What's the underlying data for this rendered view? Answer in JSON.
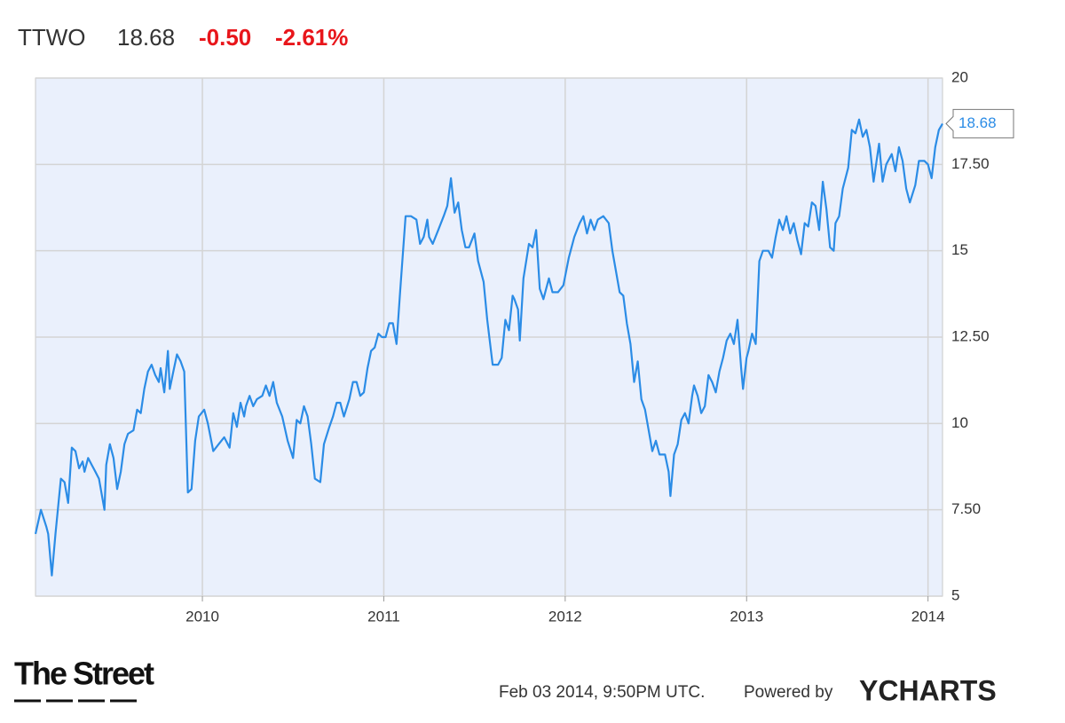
{
  "chart_data": {
    "type": "line",
    "title": "TTWO",
    "price": 18.68,
    "change": "-0.50",
    "change_percent": "-2.61%",
    "timestamp": "Feb 03 2014, 9:50PM UTC.",
    "powered_by": "Powered by",
    "brand": "YCHARTS",
    "source_logo": "The Street",
    "x": [
      2009.08,
      2009.11,
      2009.14,
      2009.15,
      2009.17,
      2009.19,
      2009.22,
      2009.24,
      2009.26,
      2009.28,
      2009.3,
      2009.32,
      2009.34,
      2009.35,
      2009.37,
      2009.39,
      2009.41,
      2009.43,
      2009.46,
      2009.47,
      2009.49,
      2009.51,
      2009.53,
      2009.55,
      2009.57,
      2009.59,
      2009.62,
      2009.64,
      2009.66,
      2009.68,
      2009.7,
      2009.72,
      2009.74,
      2009.76,
      2009.77,
      2009.79,
      2009.81,
      2009.82,
      2009.84,
      2009.86,
      2009.88,
      2009.9,
      2009.92,
      2009.94,
      2009.96,
      2009.98,
      2010.01,
      2010.03,
      2010.06,
      2010.09,
      2010.12,
      2010.15,
      2010.17,
      2010.19,
      2010.21,
      2010.23,
      2010.24,
      2010.26,
      2010.28,
      2010.3,
      2010.33,
      2010.35,
      2010.37,
      2010.39,
      2010.41,
      2010.44,
      2010.47,
      2010.5,
      2010.52,
      2010.54,
      2010.56,
      2010.58,
      2010.6,
      2010.62,
      2010.65,
      2010.67,
      2010.7,
      2010.72,
      2010.74,
      2010.76,
      2010.78,
      2010.81,
      2010.83,
      2010.85,
      2010.87,
      2010.89,
      2010.91,
      2010.93,
      2010.95,
      2010.97,
      2010.99,
      2011.01,
      2011.03,
      2011.05,
      2011.07,
      2011.09,
      2011.12,
      2011.15,
      2011.18,
      2011.2,
      2011.22,
      2011.24,
      2011.25,
      2011.27,
      2011.3,
      2011.33,
      2011.35,
      2011.37,
      2011.39,
      2011.41,
      2011.43,
      2011.45,
      2011.47,
      2011.5,
      2011.52,
      2011.55,
      2011.57,
      2011.6,
      2011.63,
      2011.65,
      2011.67,
      2011.69,
      2011.71,
      2011.72,
      2011.74,
      2011.75,
      2011.77,
      2011.8,
      2011.82,
      2011.84,
      2011.86,
      2011.88,
      2011.91,
      2011.93,
      2011.96,
      2011.99,
      2012.02,
      2012.05,
      2012.08,
      2012.1,
      2012.12,
      2012.14,
      2012.16,
      2012.18,
      2012.21,
      2012.24,
      2012.26,
      2012.28,
      2012.3,
      2012.32,
      2012.34,
      2012.36,
      2012.38,
      2012.4,
      2012.42,
      2012.44,
      2012.46,
      2012.48,
      2012.5,
      2012.52,
      2012.55,
      2012.57,
      2012.58,
      2012.6,
      2012.62,
      2012.64,
      2012.66,
      2012.68,
      2012.7,
      2012.71,
      2012.73,
      2012.75,
      2012.77,
      2012.79,
      2012.81,
      2012.83,
      2012.85,
      2012.87,
      2012.89,
      2012.91,
      2012.93,
      2012.95,
      2012.97,
      2012.98,
      2013.0,
      2013.01,
      2013.03,
      2013.05,
      2013.07,
      2013.09,
      2013.12,
      2013.14,
      2013.16,
      2013.18,
      2013.2,
      2013.22,
      2013.24,
      2013.26,
      2013.28,
      2013.3,
      2013.32,
      2013.34,
      2013.36,
      2013.38,
      2013.4,
      2013.42,
      2013.44,
      2013.46,
      2013.48,
      2013.49,
      2013.51,
      2013.53,
      2013.56,
      2013.58,
      2013.6,
      2013.62,
      2013.64,
      2013.66,
      2013.68,
      2013.7,
      2013.73,
      2013.75,
      2013.77,
      2013.8,
      2013.82,
      2013.84,
      2013.86,
      2013.88,
      2013.9,
      2013.93,
      2013.95,
      2013.98,
      2014.0,
      2014.02,
      2014.04,
      2014.06,
      2014.08
    ],
    "series": [
      {
        "name": "TTWO",
        "color": "#2b8ce6",
        "values": [
          6.8,
          7.5,
          7.0,
          6.8,
          5.6,
          6.8,
          8.4,
          8.3,
          7.7,
          9.3,
          9.2,
          8.7,
          8.9,
          8.6,
          9.0,
          8.8,
          8.6,
          8.4,
          7.5,
          8.8,
          9.4,
          9.0,
          8.1,
          8.6,
          9.4,
          9.7,
          9.8,
          10.4,
          10.3,
          11.0,
          11.5,
          11.7,
          11.4,
          11.2,
          11.6,
          10.9,
          12.1,
          11.0,
          11.5,
          12.0,
          11.8,
          11.5,
          8.0,
          8.1,
          9.5,
          10.2,
          10.4,
          10.0,
          9.2,
          9.4,
          9.6,
          9.3,
          10.3,
          9.9,
          10.6,
          10.2,
          10.5,
          10.8,
          10.5,
          10.7,
          10.8,
          11.1,
          10.8,
          11.2,
          10.6,
          10.2,
          9.5,
          9.0,
          10.1,
          10.0,
          10.5,
          10.2,
          9.4,
          8.4,
          8.3,
          9.4,
          9.9,
          10.2,
          10.6,
          10.6,
          10.2,
          10.7,
          11.2,
          11.2,
          10.8,
          10.9,
          11.6,
          12.1,
          12.2,
          12.6,
          12.5,
          12.5,
          12.9,
          12.9,
          12.3,
          13.8,
          16.0,
          16.0,
          15.9,
          15.2,
          15.4,
          15.9,
          15.4,
          15.2,
          15.6,
          16.0,
          16.3,
          17.1,
          16.1,
          16.4,
          15.6,
          15.1,
          15.1,
          15.5,
          14.7,
          14.1,
          13.0,
          11.7,
          11.7,
          11.9,
          13.0,
          12.7,
          13.7,
          13.6,
          13.3,
          12.4,
          14.2,
          15.2,
          15.1,
          15.6,
          13.9,
          13.6,
          14.2,
          13.8,
          13.8,
          14.0,
          14.8,
          15.4,
          15.8,
          16.0,
          15.5,
          15.9,
          15.6,
          15.9,
          16.0,
          15.8,
          15.0,
          14.4,
          13.8,
          13.7,
          12.9,
          12.3,
          11.2,
          11.8,
          10.7,
          10.4,
          9.8,
          9.2,
          9.5,
          9.1,
          9.1,
          8.6,
          7.9,
          9.1,
          9.4,
          10.1,
          10.3,
          10.0,
          10.8,
          11.1,
          10.8,
          10.3,
          10.5,
          11.4,
          11.2,
          10.9,
          11.5,
          11.9,
          12.4,
          12.6,
          12.3,
          13.0,
          11.6,
          11.0,
          11.9,
          12.1,
          12.6,
          12.3,
          14.7,
          15.0,
          15.0,
          14.8,
          15.4,
          15.9,
          15.6,
          16.0,
          15.5,
          15.8,
          15.3,
          14.9,
          15.8,
          15.7,
          16.4,
          16.3,
          15.6,
          17.0,
          16.2,
          15.1,
          15.0,
          15.8,
          16.0,
          16.8,
          17.4,
          18.5,
          18.4,
          18.8,
          18.3,
          18.5,
          18.0,
          17.0,
          18.1,
          17.0,
          17.5,
          17.8,
          17.3,
          18.0,
          17.6,
          16.8,
          16.4,
          16.9,
          17.6,
          17.6,
          17.5,
          17.1,
          18.0,
          18.5,
          18.68
        ]
      }
    ],
    "xlim": [
      2009.08,
      2014.08
    ],
    "xticks": [
      2010,
      2011,
      2012,
      2013,
      2014
    ],
    "ylim": [
      5,
      20
    ],
    "yticks": [
      5,
      {
        "value": 7.5,
        "label": "7.50"
      },
      10,
      {
        "value": 12.5,
        "label": "12.50"
      },
      15,
      {
        "value": 17.5,
        "label": "17.50"
      },
      20
    ],
    "grid": true
  }
}
